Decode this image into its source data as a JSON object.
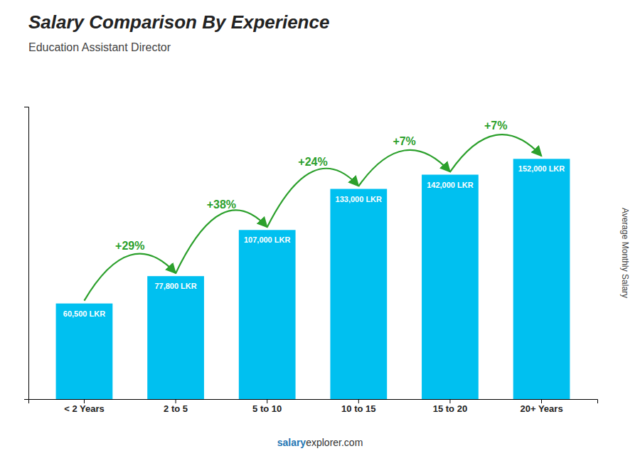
{
  "chart_data": {
    "type": "bar",
    "title": "Salary Comparison By Experience",
    "subtitle": "Education Assistant Director",
    "ylabel": "Average Monthly Salary",
    "categories": [
      "< 2 Years",
      "2 to 5",
      "5 to 10",
      "10 to 15",
      "15 to 20",
      "20+ Years"
    ],
    "values": [
      60500,
      77800,
      107000,
      133000,
      142000,
      152000
    ],
    "value_labels": [
      "60,500 LKR",
      "77,800 LKR",
      "107,000 LKR",
      "133,000 LKR",
      "142,000 LKR",
      "152,000 LKR"
    ],
    "data_labels": true,
    "annotations": [
      "+29%",
      "+38%",
      "+24%",
      "+7%",
      "+7%"
    ],
    "footer": [
      "salary",
      "explorer.com"
    ],
    "color": "#00C0F0",
    "ylim": [
      0,
      185000
    ],
    "grid": false,
    "tick_labels": "x"
  }
}
